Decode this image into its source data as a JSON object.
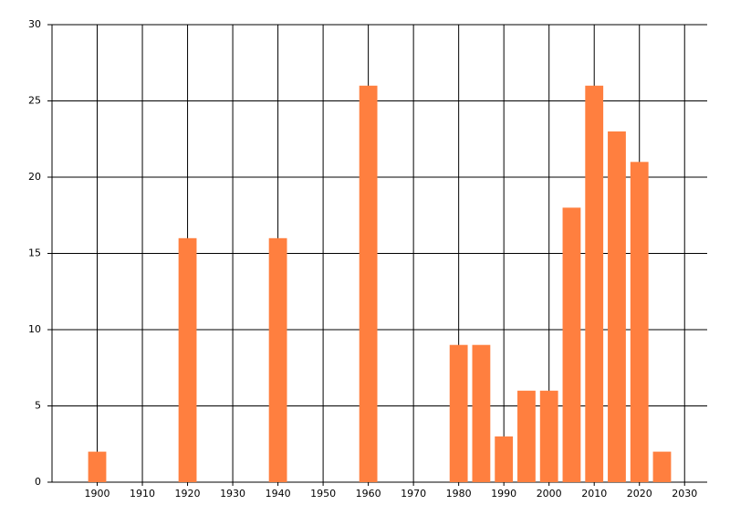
{
  "chart_data": {
    "type": "bar",
    "x": [
      1900,
      1920,
      1940,
      1960,
      1980,
      1985,
      1990,
      1995,
      2000,
      2005,
      2010,
      2015,
      2020,
      2025
    ],
    "values": [
      2,
      16,
      16,
      26,
      9,
      9,
      3,
      6,
      6,
      18,
      26,
      23,
      21,
      2
    ],
    "color": "#ff7f3f",
    "xlim": [
      1890,
      2035
    ],
    "ylim": [
      0,
      30
    ],
    "xticks": [
      1900,
      1910,
      1920,
      1930,
      1940,
      1950,
      1960,
      1970,
      1980,
      1990,
      2000,
      2010,
      2020,
      2030
    ],
    "yticks": [
      0,
      5,
      10,
      15,
      20,
      25,
      30
    ],
    "grid": true
  }
}
